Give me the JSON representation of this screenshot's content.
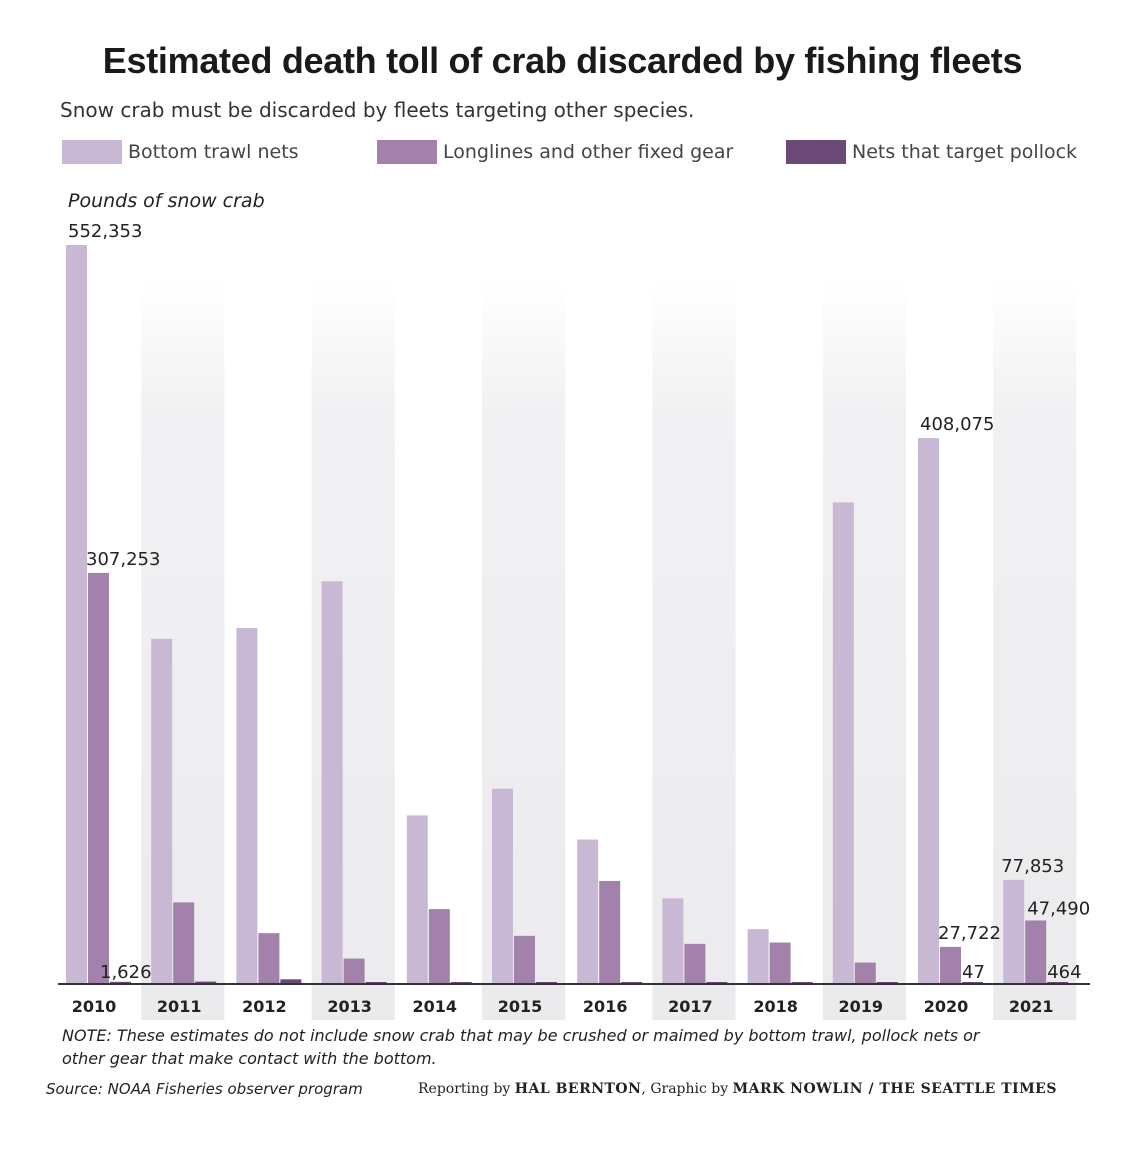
{
  "colors": {
    "bottom_trawl": "#c9b8d3",
    "longlines": "#a282aa",
    "pollock": "#6b4a7a",
    "axis": "#333333"
  },
  "chart_data": {
    "type": "bar",
    "title": "Estimated death toll of crab discarded by fishing fleets",
    "subtitle": "Snow crab must be discarded by fleets targeting other species.",
    "ylabel": "Pounds of snow crab",
    "xlabel": "",
    "ylim": [
      0,
      552353
    ],
    "legend_position": "top",
    "grid": false,
    "categories": [
      "2010",
      "2011",
      "2012",
      "2013",
      "2014",
      "2015",
      "2016",
      "2017",
      "2018",
      "2019",
      "2020",
      "2021"
    ],
    "series": [
      {
        "name": "Bottom trawl nets",
        "values": [
          552353,
          258000,
          266000,
          301000,
          126000,
          146000,
          108000,
          64000,
          41000,
          360000,
          408075,
          77853
        ],
        "labels": [
          "552,353",
          "",
          "",
          "",
          "",
          "",
          "",
          "",
          "",
          "",
          "408,075",
          "77,853"
        ]
      },
      {
        "name": "Longlines and other fixed gear",
        "values": [
          307253,
          61000,
          38000,
          19000,
          56000,
          36000,
          77000,
          30000,
          31000,
          16000,
          27722,
          47490
        ],
        "labels": [
          "307,253",
          "",
          "",
          "",
          "",
          "",
          "",
          "",
          "",
          "",
          "27,722",
          "47,490"
        ]
      },
      {
        "name": "Nets that target pollock",
        "values": [
          1626,
          1800,
          3500,
          1200,
          1100,
          800,
          600,
          400,
          300,
          200,
          47,
          464
        ],
        "labels": [
          "1,626",
          "",
          "",
          "",
          "",
          "",
          "",
          "",
          "",
          "",
          "47",
          "464"
        ]
      }
    ]
  },
  "note": "NOTE: These estimates do not include snow crab that may be crushed or maimed by bottom trawl, pollock nets or other gear that make contact with the bottom.",
  "source": "Source: NOAA Fisheries observer program",
  "credit": {
    "reporting_prefix": "Reporting by",
    "reporter": "HAL BERNTON",
    "graphic_prefix": ", Graphic by",
    "graphic": "MARK NOWLIN / THE SEATTLE TIMES"
  }
}
